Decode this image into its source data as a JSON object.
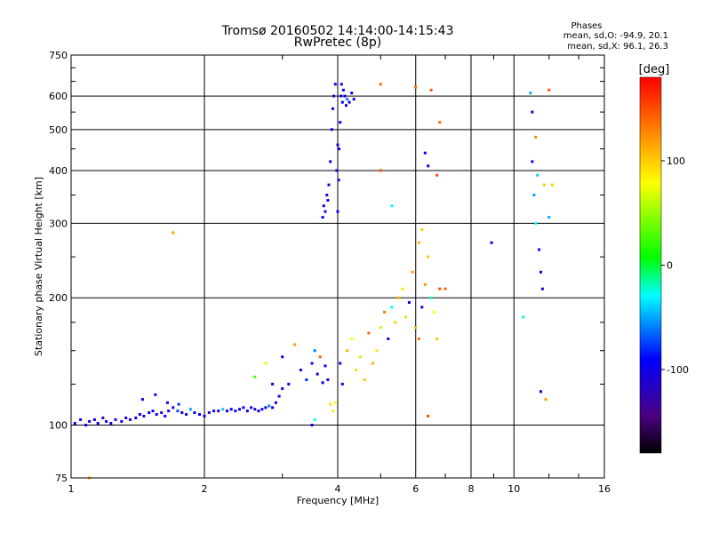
{
  "chart_data": {
    "type": "scatter",
    "title": "Tromsø 20160502 14:14:00-14:15:43",
    "subtitle": "RwPretec (8p)",
    "xlabel": "Frequency [MHz]",
    "ylabel": "Stationary phase Virtual Height [km]",
    "xscale": "log",
    "yscale": "log",
    "xlim": [
      1,
      16
    ],
    "ylim": [
      75,
      750
    ],
    "xticks": [
      1,
      2,
      4,
      6,
      8,
      10,
      16
    ],
    "xtick_labels": [
      "1",
      "2",
      "4",
      "6",
      "8",
      "10",
      "16"
    ],
    "yticks": [
      75,
      100,
      200,
      300,
      400,
      500,
      600,
      750
    ],
    "ytick_labels": [
      "75",
      "100",
      "200",
      "300",
      "400",
      "500",
      "600",
      "750"
    ],
    "grid": true,
    "phase_info": {
      "heading": "Phases",
      "line_o": "mean, sd,O: -94.9, 20.1",
      "line_x": "mean, sd,X:  96.1, 26.3"
    },
    "colorbar": {
      "label": "[deg]",
      "range": [
        -180,
        180
      ],
      "ticks": [
        100,
        0,
        -100
      ],
      "tick_labels": [
        "100",
        "0",
        "-100"
      ],
      "colormap": "rainbow"
    },
    "points": [
      [
        1.02,
        101,
        -100
      ],
      [
        1.05,
        103,
        -105
      ],
      [
        1.08,
        100,
        -95
      ],
      [
        1.1,
        102,
        -110
      ],
      [
        1.13,
        103,
        -90
      ],
      [
        1.15,
        101,
        -100
      ],
      [
        1.18,
        104,
        -115
      ],
      [
        1.2,
        102,
        -95
      ],
      [
        1.23,
        101,
        -100
      ],
      [
        1.26,
        103,
        -110
      ],
      [
        1.3,
        102,
        -90
      ],
      [
        1.33,
        104,
        -100
      ],
      [
        1.36,
        103,
        -105
      ],
      [
        1.4,
        104,
        -95
      ],
      [
        1.43,
        106,
        -100
      ],
      [
        1.46,
        105,
        -110
      ],
      [
        1.5,
        107,
        -100
      ],
      [
        1.53,
        108,
        -90
      ],
      [
        1.56,
        106,
        -100
      ],
      [
        1.6,
        107,
        -115
      ],
      [
        1.63,
        105,
        -100
      ],
      [
        1.66,
        108,
        -95
      ],
      [
        1.7,
        110,
        -100
      ],
      [
        1.74,
        108,
        -70
      ],
      [
        1.78,
        107,
        -100
      ],
      [
        1.82,
        106,
        -105
      ],
      [
        1.86,
        109,
        -50
      ],
      [
        1.9,
        107,
        -100
      ],
      [
        1.95,
        106,
        -90
      ],
      [
        2.0,
        105,
        -100
      ],
      [
        2.05,
        107,
        -110
      ],
      [
        2.1,
        108,
        -95
      ],
      [
        2.15,
        108,
        -100
      ],
      [
        2.2,
        109,
        -40
      ],
      [
        2.25,
        108,
        -100
      ],
      [
        2.3,
        109,
        -90
      ],
      [
        2.35,
        108,
        -100
      ],
      [
        2.4,
        109,
        -105
      ],
      [
        2.45,
        110,
        -100
      ],
      [
        2.5,
        108,
        -95
      ],
      [
        2.55,
        110,
        -100
      ],
      [
        2.6,
        109,
        -110
      ],
      [
        2.65,
        108,
        -100
      ],
      [
        2.7,
        109,
        -90
      ],
      [
        2.75,
        110,
        -100
      ],
      [
        2.8,
        111,
        -60
      ],
      [
        2.85,
        110,
        -100
      ],
      [
        2.9,
        113,
        -95
      ],
      [
        2.95,
        117,
        -100
      ],
      [
        3.0,
        122,
        -105
      ],
      [
        1.45,
        115,
        -100
      ],
      [
        1.55,
        118,
        -90
      ],
      [
        1.65,
        113,
        -100
      ],
      [
        1.75,
        112,
        -80
      ],
      [
        2.6,
        130,
        20
      ],
      [
        2.75,
        140,
        70
      ],
      [
        2.85,
        125,
        -100
      ],
      [
        3.0,
        145,
        -90
      ],
      [
        3.1,
        125,
        -100
      ],
      [
        3.2,
        155,
        120
      ],
      [
        3.3,
        135,
        -95
      ],
      [
        3.4,
        128,
        -80
      ],
      [
        3.5,
        140,
        -100
      ],
      [
        3.55,
        150,
        -60
      ],
      [
        3.6,
        132,
        -100
      ],
      [
        3.65,
        145,
        140
      ],
      [
        3.7,
        126,
        -90
      ],
      [
        3.75,
        138,
        -105
      ],
      [
        3.8,
        128,
        -100
      ],
      [
        3.85,
        112,
        90
      ],
      [
        3.9,
        108,
        85
      ],
      [
        3.95,
        113,
        80
      ],
      [
        3.55,
        103,
        -30
      ],
      [
        3.5,
        100,
        -100
      ],
      [
        4.05,
        140,
        -100
      ],
      [
        4.1,
        125,
        -95
      ],
      [
        4.2,
        150,
        110
      ],
      [
        4.3,
        160,
        80
      ],
      [
        4.4,
        135,
        90
      ],
      [
        4.5,
        145,
        60
      ],
      [
        4.6,
        128,
        100
      ],
      [
        4.7,
        165,
        140
      ],
      [
        4.8,
        140,
        110
      ],
      [
        4.9,
        150,
        90
      ],
      [
        5.0,
        170,
        60
      ],
      [
        5.1,
        185,
        130
      ],
      [
        5.2,
        160,
        -100
      ],
      [
        5.3,
        190,
        -30
      ],
      [
        5.4,
        175,
        100
      ],
      [
        5.5,
        200,
        110
      ],
      [
        5.6,
        210,
        90
      ],
      [
        5.7,
        180,
        60
      ],
      [
        5.8,
        195,
        -100
      ],
      [
        5.9,
        230,
        120
      ],
      [
        6.0,
        170,
        110
      ],
      [
        6.1,
        160,
        140
      ],
      [
        6.2,
        190,
        -100
      ],
      [
        6.3,
        215,
        120
      ],
      [
        6.4,
        250,
        100
      ],
      [
        6.5,
        200,
        -20
      ],
      [
        6.6,
        185,
        80
      ],
      [
        6.7,
        160,
        100
      ],
      [
        6.8,
        210,
        150
      ],
      [
        7.0,
        210,
        140
      ],
      [
        4.0,
        320,
        -100
      ],
      [
        4.02,
        380,
        -110
      ],
      [
        4.03,
        450,
        -100
      ],
      [
        4.05,
        520,
        -95
      ],
      [
        4.07,
        600,
        -100
      ],
      [
        4.08,
        640,
        -90
      ],
      [
        4.1,
        580,
        -100
      ],
      [
        4.12,
        620,
        -105
      ],
      [
        4.15,
        600,
        -110
      ],
      [
        4.18,
        570,
        -100
      ],
      [
        4.2,
        590,
        -60
      ],
      [
        4.25,
        580,
        -100
      ],
      [
        4.3,
        610,
        -90
      ],
      [
        4.35,
        590,
        -100
      ],
      [
        3.95,
        640,
        -100
      ],
      [
        3.92,
        600,
        -105
      ],
      [
        3.9,
        560,
        -100
      ],
      [
        3.88,
        500,
        -100
      ],
      [
        3.85,
        420,
        -100
      ],
      [
        3.82,
        370,
        -110
      ],
      [
        3.8,
        340,
        -100
      ],
      [
        3.75,
        320,
        -100
      ],
      [
        3.7,
        310,
        -90
      ],
      [
        3.72,
        330,
        -100
      ],
      [
        3.78,
        350,
        -95
      ],
      [
        3.98,
        400,
        -100
      ],
      [
        4.0,
        460,
        -110
      ],
      [
        5.0,
        640,
        140
      ],
      [
        5.0,
        400,
        150
      ],
      [
        6.0,
        630,
        140
      ],
      [
        6.5,
        620,
        150
      ],
      [
        6.8,
        520,
        140
      ],
      [
        6.7,
        390,
        150
      ],
      [
        6.4,
        410,
        -100
      ],
      [
        6.3,
        440,
        -100
      ],
      [
        6.2,
        290,
        100
      ],
      [
        6.1,
        270,
        110
      ],
      [
        5.3,
        330,
        -30
      ],
      [
        10.9,
        610,
        -50
      ],
      [
        11.0,
        550,
        -100
      ],
      [
        11.2,
        480,
        130
      ],
      [
        11.0,
        420,
        -100
      ],
      [
        11.3,
        390,
        -40
      ],
      [
        11.1,
        350,
        -50
      ],
      [
        11.2,
        300,
        -30
      ],
      [
        11.4,
        260,
        -100
      ],
      [
        11.5,
        230,
        -100
      ],
      [
        11.6,
        210,
        -100
      ],
      [
        11.7,
        370,
        100
      ],
      [
        12.0,
        620,
        150
      ],
      [
        12.2,
        370,
        100
      ],
      [
        12.0,
        310,
        -50
      ],
      [
        11.5,
        120,
        -100
      ],
      [
        11.8,
        115,
        120
      ],
      [
        10.5,
        180,
        -20
      ],
      [
        8.9,
        270,
        -100
      ],
      [
        6.4,
        105,
        150
      ],
      [
        1.1,
        75,
        110
      ],
      [
        1.7,
        285,
        120
      ]
    ]
  }
}
